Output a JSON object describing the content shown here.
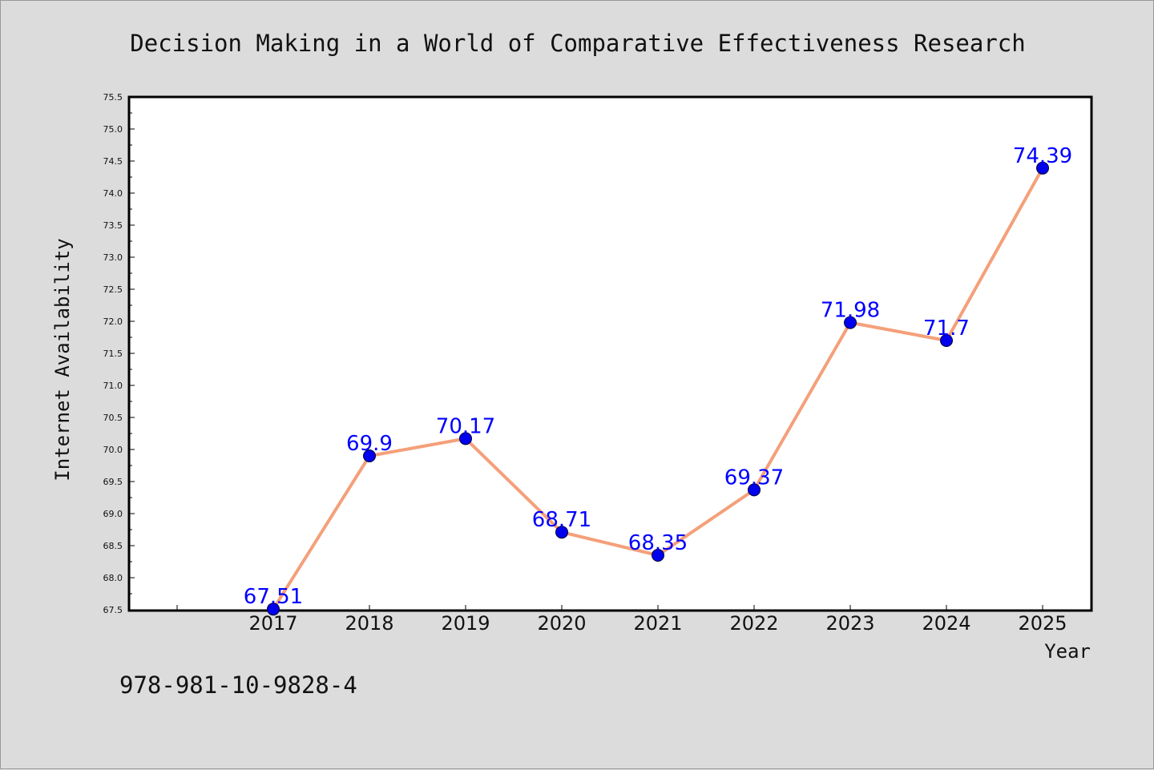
{
  "chart_data": {
    "type": "line",
    "title": "Decision Making in a World of Comparative Effectiveness Research",
    "xlabel": "Year",
    "ylabel": "Internet Availability",
    "x": [
      "2017",
      "2018",
      "2019",
      "2020",
      "2021",
      "2022",
      "2023",
      "2024",
      "2025"
    ],
    "series": [
      {
        "values": [
          67.51,
          69.9,
          70.17,
          68.71,
          68.35,
          69.37,
          71.98,
          71.7,
          74.39
        ],
        "data_labels": [
          "67.51",
          "69.9",
          "70.17",
          "68.71",
          "68.35",
          "69.37",
          "71.98",
          "71.7",
          "74.39"
        ],
        "line_color": "#f4a07a",
        "marker_color": "#0000ee"
      }
    ],
    "ylim": [
      67.5,
      75.5
    ],
    "yticks": [
      "67.5",
      "68.0",
      "68.5",
      "69.0",
      "69.5",
      "70.0",
      "70.5",
      "71.0",
      "71.5",
      "72.0",
      "72.5",
      "73.0",
      "73.5",
      "74.0",
      "74.5",
      "75.0",
      "75.5"
    ],
    "grid": false,
    "legend": "none"
  },
  "footer_text": "978-981-10-9828-4",
  "colors": {
    "background": "#dcdcdc",
    "plot_area": "#ffffff",
    "data_label": "#0000ff"
  }
}
